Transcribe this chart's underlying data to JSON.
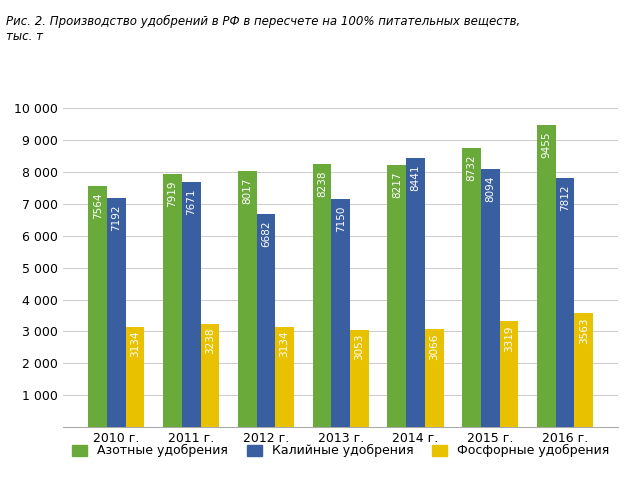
{
  "title_line1": "Рис. 2. Производство удобрений в РФ в пересчете на 100% питательных веществ,",
  "title_line2": "тыс. т",
  "years": [
    "2010 г.",
    "2011 г.",
    "2012 г.",
    "2013 г.",
    "2014 г.",
    "2015 г.",
    "2016 г."
  ],
  "azot": [
    7564,
    7919,
    8017,
    8238,
    8217,
    8732,
    9455
  ],
  "kaliy": [
    7192,
    7671,
    6682,
    7150,
    8441,
    8094,
    7812
  ],
  "fosfor": [
    3134,
    3238,
    3134,
    3053,
    3066,
    3319,
    3563
  ],
  "color_azot": "#6aaa3a",
  "color_kaliy": "#3a5fa0",
  "color_fosfor": "#e8c200",
  "legend_azot": "Азотные удобрения",
  "legend_kaliy": "Калийные удобрения",
  "legend_fosfor": "Фосфорные удобрения",
  "ylim": [
    0,
    10000
  ],
  "yticks": [
    0,
    1000,
    2000,
    3000,
    4000,
    5000,
    6000,
    7000,
    8000,
    9000,
    10000
  ],
  "background_color": "#ffffff",
  "label_fontsize": 7.5,
  "bar_width": 0.25
}
